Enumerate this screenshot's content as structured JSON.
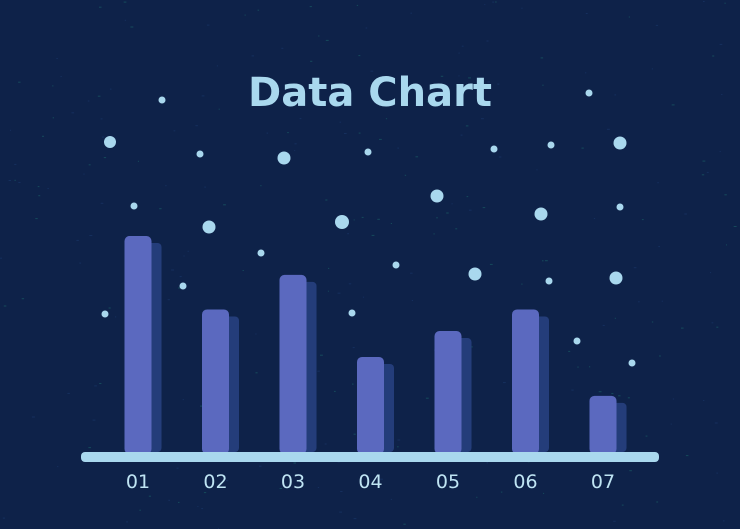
{
  "chart_data": {
    "type": "bar",
    "title": "Data Chart",
    "xlabel": "",
    "ylabel": "",
    "categories": [
      "01",
      "02",
      "03",
      "04",
      "05",
      "06",
      "07"
    ],
    "values": [
      100,
      66,
      82,
      44,
      56,
      66,
      26
    ],
    "ylim": [
      0,
      100
    ],
    "grid": false,
    "legend": "none"
  },
  "colors": {
    "background": "#0e2249",
    "bar": "#5b69bf",
    "bar_shadow": "#243d7a",
    "baseline": "#a9d8ee",
    "title": "#a9d8ee",
    "dots": "#a9d8ee",
    "tick_label": "#bfe4f3"
  }
}
